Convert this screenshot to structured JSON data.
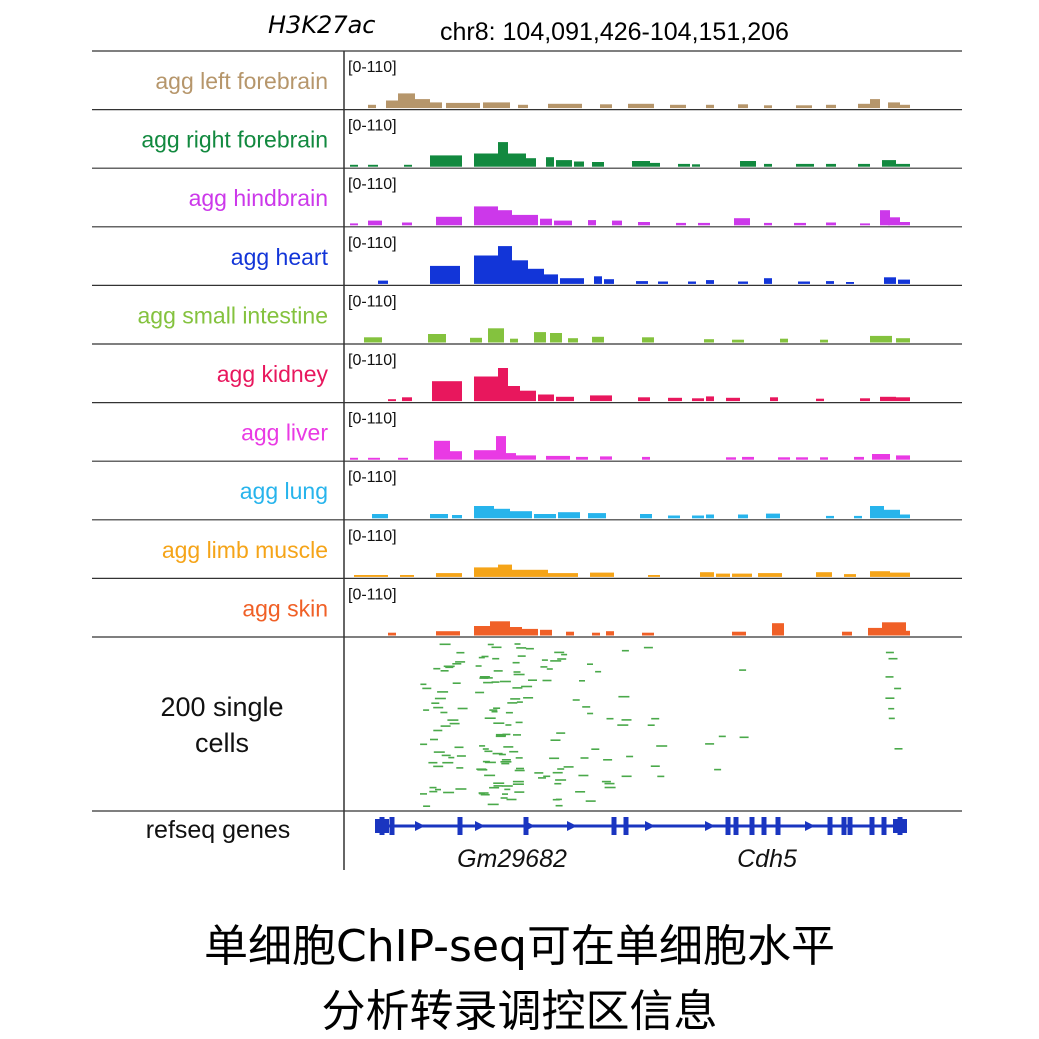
{
  "header": {
    "mark": "H3K27ac",
    "locus": "chr8: 104,091,426-104,151,206"
  },
  "chart_data": {
    "type": "genome-browser-tracks",
    "locus": "chr8: 104,091,426-104,151,206",
    "x_range": [
      104091426,
      104151206
    ],
    "tracks": [
      {
        "name": "agg left forebrain",
        "color": "#b6966b",
        "range": "[0-110]",
        "ymax": 110,
        "peaks": [
          [
            18,
            26,
            7
          ],
          [
            36,
            48,
            16
          ],
          [
            48,
            65,
            31
          ],
          [
            65,
            80,
            19
          ],
          [
            80,
            92,
            12
          ],
          [
            96,
            130,
            11
          ],
          [
            133,
            160,
            12
          ],
          [
            168,
            178,
            7
          ],
          [
            198,
            232,
            9
          ],
          [
            250,
            262,
            8
          ],
          [
            278,
            304,
            9
          ],
          [
            320,
            336,
            7
          ],
          [
            356,
            364,
            7
          ],
          [
            388,
            398,
            8
          ],
          [
            414,
            422,
            6
          ],
          [
            446,
            462,
            6
          ],
          [
            476,
            486,
            7
          ],
          [
            508,
            520,
            9
          ],
          [
            520,
            530,
            19
          ],
          [
            538,
            550,
            12
          ],
          [
            550,
            560,
            7
          ]
        ]
      },
      {
        "name": "agg right forebrain",
        "color": "#12893f",
        "range": "[0-110]",
        "ymax": 110,
        "peaks": [
          [
            0,
            8,
            4
          ],
          [
            18,
            28,
            4
          ],
          [
            54,
            62,
            4
          ],
          [
            80,
            112,
            24
          ],
          [
            124,
            148,
            28
          ],
          [
            148,
            158,
            52
          ],
          [
            158,
            176,
            28
          ],
          [
            176,
            186,
            18
          ],
          [
            196,
            204,
            20
          ],
          [
            206,
            222,
            14
          ],
          [
            224,
            234,
            11
          ],
          [
            242,
            254,
            10
          ],
          [
            282,
            300,
            12
          ],
          [
            300,
            310,
            8
          ],
          [
            328,
            340,
            6
          ],
          [
            342,
            350,
            5
          ],
          [
            390,
            406,
            12
          ],
          [
            414,
            422,
            6
          ],
          [
            446,
            464,
            6
          ],
          [
            476,
            486,
            6
          ],
          [
            508,
            520,
            6
          ],
          [
            532,
            546,
            14
          ],
          [
            546,
            560,
            6
          ]
        ]
      },
      {
        "name": "agg hindbrain",
        "color": "#cc38ea",
        "range": "[0-110]",
        "ymax": 110,
        "peaks": [
          [
            0,
            8,
            4
          ],
          [
            18,
            32,
            10
          ],
          [
            52,
            62,
            6
          ],
          [
            86,
            112,
            18
          ],
          [
            124,
            148,
            40
          ],
          [
            148,
            162,
            32
          ],
          [
            162,
            188,
            22
          ],
          [
            190,
            202,
            14
          ],
          [
            204,
            222,
            10
          ],
          [
            238,
            246,
            11
          ],
          [
            262,
            272,
            10
          ],
          [
            288,
            300,
            7
          ],
          [
            326,
            336,
            5
          ],
          [
            348,
            360,
            5
          ],
          [
            384,
            400,
            15
          ],
          [
            414,
            422,
            5
          ],
          [
            444,
            456,
            5
          ],
          [
            476,
            486,
            6
          ],
          [
            510,
            520,
            4
          ],
          [
            530,
            540,
            32
          ],
          [
            538,
            550,
            17
          ],
          [
            550,
            560,
            7
          ]
        ]
      },
      {
        "name": "agg heart",
        "color": "#1235d8",
        "range": "[0-110]",
        "ymax": 110,
        "peaks": [
          [
            28,
            38,
            7
          ],
          [
            80,
            110,
            38
          ],
          [
            124,
            148,
            60
          ],
          [
            148,
            162,
            80
          ],
          [
            162,
            178,
            50
          ],
          [
            178,
            194,
            32
          ],
          [
            194,
            208,
            20
          ],
          [
            210,
            234,
            12
          ],
          [
            244,
            252,
            16
          ],
          [
            254,
            264,
            10
          ],
          [
            286,
            298,
            6
          ],
          [
            308,
            318,
            5
          ],
          [
            338,
            346,
            5
          ],
          [
            356,
            364,
            8
          ],
          [
            388,
            398,
            5
          ],
          [
            414,
            422,
            12
          ],
          [
            448,
            460,
            5
          ],
          [
            476,
            484,
            6
          ],
          [
            496,
            504,
            4
          ],
          [
            534,
            546,
            14
          ],
          [
            548,
            560,
            9
          ]
        ]
      },
      {
        "name": "agg small intestine",
        "color": "#84c23e",
        "range": "[0-110]",
        "ymax": 110,
        "peaks": [
          [
            14,
            32,
            11
          ],
          [
            78,
            96,
            18
          ],
          [
            120,
            132,
            10
          ],
          [
            138,
            154,
            30
          ],
          [
            160,
            168,
            8
          ],
          [
            184,
            196,
            22
          ],
          [
            200,
            212,
            20
          ],
          [
            218,
            228,
            9
          ],
          [
            242,
            254,
            12
          ],
          [
            292,
            304,
            11
          ],
          [
            354,
            364,
            7
          ],
          [
            382,
            394,
            6
          ],
          [
            430,
            438,
            8
          ],
          [
            470,
            478,
            6
          ],
          [
            520,
            542,
            14
          ],
          [
            546,
            560,
            9
          ]
        ]
      },
      {
        "name": "agg kidney",
        "color": "#e8175d",
        "range": "[0-110]",
        "ymax": 110,
        "peaks": [
          [
            38,
            46,
            4
          ],
          [
            52,
            62,
            8
          ],
          [
            82,
            112,
            42
          ],
          [
            124,
            148,
            52
          ],
          [
            148,
            158,
            70
          ],
          [
            158,
            170,
            32
          ],
          [
            170,
            186,
            22
          ],
          [
            188,
            204,
            14
          ],
          [
            206,
            224,
            9
          ],
          [
            240,
            262,
            12
          ],
          [
            288,
            300,
            8
          ],
          [
            318,
            332,
            7
          ],
          [
            342,
            354,
            6
          ],
          [
            356,
            364,
            10
          ],
          [
            376,
            390,
            7
          ],
          [
            420,
            428,
            8
          ],
          [
            466,
            474,
            5
          ],
          [
            510,
            520,
            6
          ],
          [
            530,
            546,
            9
          ],
          [
            546,
            560,
            8
          ]
        ]
      },
      {
        "name": "agg liver",
        "color": "#e93ae4",
        "range": "[0-110]",
        "ymax": 110,
        "peaks": [
          [
            0,
            8,
            4
          ],
          [
            18,
            30,
            4
          ],
          [
            48,
            58,
            4
          ],
          [
            84,
            100,
            40
          ],
          [
            100,
            112,
            18
          ],
          [
            124,
            146,
            20
          ],
          [
            146,
            156,
            50
          ],
          [
            156,
            166,
            14
          ],
          [
            166,
            186,
            9
          ],
          [
            196,
            220,
            8
          ],
          [
            226,
            238,
            6
          ],
          [
            250,
            262,
            7
          ],
          [
            292,
            300,
            6
          ],
          [
            376,
            386,
            5
          ],
          [
            392,
            404,
            6
          ],
          [
            428,
            440,
            5
          ],
          [
            446,
            458,
            5
          ],
          [
            470,
            478,
            5
          ],
          [
            504,
            514,
            6
          ],
          [
            522,
            540,
            12
          ],
          [
            546,
            560,
            9
          ]
        ]
      },
      {
        "name": "agg lung",
        "color": "#27b4ec",
        "range": "[0-110]",
        "ymax": 110,
        "peaks": [
          [
            22,
            38,
            9
          ],
          [
            80,
            98,
            9
          ],
          [
            102,
            112,
            7
          ],
          [
            124,
            144,
            26
          ],
          [
            144,
            160,
            20
          ],
          [
            160,
            182,
            15
          ],
          [
            184,
            206,
            9
          ],
          [
            208,
            230,
            13
          ],
          [
            238,
            256,
            11
          ],
          [
            290,
            302,
            9
          ],
          [
            318,
            330,
            6
          ],
          [
            342,
            354,
            6
          ],
          [
            356,
            364,
            8
          ],
          [
            388,
            398,
            8
          ],
          [
            416,
            430,
            10
          ],
          [
            476,
            484,
            5
          ],
          [
            504,
            512,
            5
          ],
          [
            520,
            534,
            26
          ],
          [
            534,
            550,
            18
          ],
          [
            550,
            560,
            8
          ]
        ]
      },
      {
        "name": "agg limb muscle",
        "color": "#f5a418",
        "range": "[0-110]",
        "ymax": 110,
        "peaks": [
          [
            4,
            38,
            4
          ],
          [
            50,
            64,
            4
          ],
          [
            86,
            112,
            8
          ],
          [
            124,
            148,
            20
          ],
          [
            148,
            162,
            26
          ],
          [
            162,
            198,
            15
          ],
          [
            198,
            228,
            8
          ],
          [
            240,
            264,
            9
          ],
          [
            298,
            310,
            4
          ],
          [
            350,
            364,
            10
          ],
          [
            366,
            380,
            7
          ],
          [
            382,
            402,
            7
          ],
          [
            408,
            432,
            8
          ],
          [
            466,
            482,
            10
          ],
          [
            494,
            506,
            6
          ],
          [
            520,
            540,
            12
          ],
          [
            540,
            560,
            9
          ]
        ]
      },
      {
        "name": "agg skin",
        "color": "#f06027",
        "range": "[0-110]",
        "ymax": 110,
        "peaks": [
          [
            38,
            46,
            6
          ],
          [
            86,
            110,
            9
          ],
          [
            124,
            140,
            20
          ],
          [
            140,
            160,
            30
          ],
          [
            160,
            172,
            18
          ],
          [
            172,
            188,
            14
          ],
          [
            190,
            202,
            12
          ],
          [
            216,
            224,
            8
          ],
          [
            242,
            250,
            6
          ],
          [
            256,
            264,
            9
          ],
          [
            292,
            304,
            6
          ],
          [
            382,
            396,
            8
          ],
          [
            422,
            434,
            26
          ],
          [
            492,
            502,
            8
          ],
          [
            518,
            532,
            16
          ],
          [
            532,
            556,
            28
          ],
          [
            556,
            560,
            10
          ]
        ]
      }
    ],
    "single_cells": {
      "label": "200 single cells",
      "color": "#4aa94a"
    },
    "genes": {
      "label": "refseq genes",
      "color": "#1a35c0",
      "names": [
        "Gm29682",
        "Cdh5"
      ],
      "exons": [
        32,
        42,
        110,
        176,
        264,
        276,
        378,
        386,
        402,
        414,
        428,
        480,
        494,
        500,
        522,
        534,
        550
      ]
    }
  },
  "caption": {
    "line1": "单细胞ChIP-seq可在单细胞水平",
    "line2": "分析转录调控区信息"
  }
}
